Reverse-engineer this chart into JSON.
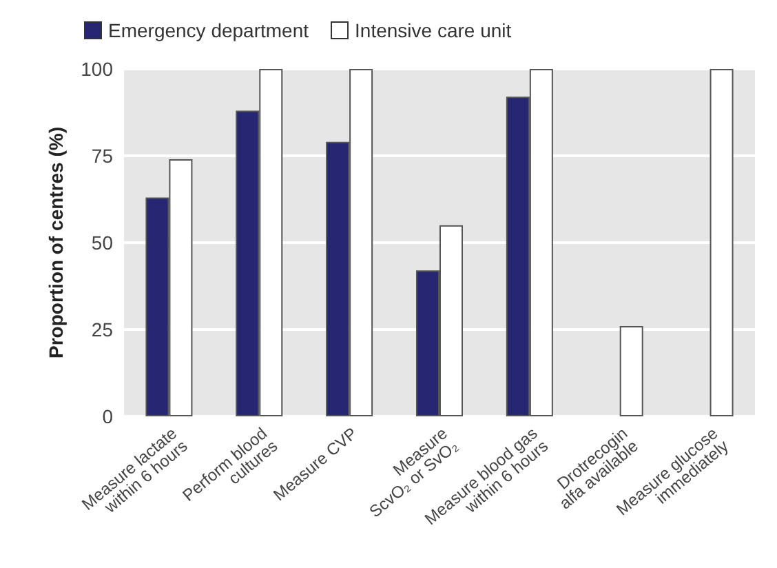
{
  "chart_data": {
    "type": "bar",
    "ylabel": "Proportion of centres (%)",
    "categories": [
      "Measure lactate\nwithin 6 hours",
      "Perform blood\ncultures",
      "Measure CVP",
      "Measure\nScvO₂ or SvO₂",
      "Measure blood gas\nwithin 6 hours",
      "Drotrecogin\nalfa available",
      "Measure glucose\nimmediately"
    ],
    "series": [
      {
        "name": "Emergency department",
        "color": "#262673",
        "values": [
          63,
          88,
          79,
          42,
          92,
          null,
          null
        ]
      },
      {
        "name": "Intensive care unit",
        "color": "#ffffff",
        "values": [
          74,
          100,
          100,
          55,
          100,
          26,
          100
        ]
      }
    ],
    "ylim": [
      0,
      100
    ],
    "yticks": [
      0,
      25,
      50,
      75,
      100
    ],
    "grid": "y",
    "legend": "top left"
  }
}
